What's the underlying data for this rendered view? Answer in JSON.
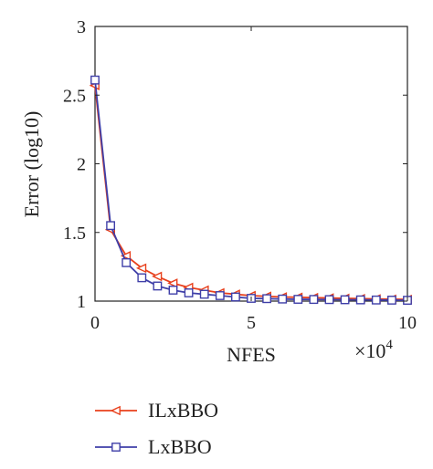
{
  "chart_data": {
    "type": "line",
    "title": "",
    "xlabel": "NFES",
    "ylabel": "Error (log10)",
    "x_multiplier_label": "×10",
    "x_multiplier_exponent": "4",
    "xlim": [
      0,
      10
    ],
    "ylim": [
      1,
      3
    ],
    "x_ticks": [
      0,
      5,
      10
    ],
    "x_tick_labels": [
      "0",
      "5",
      "10"
    ],
    "y_ticks": [
      1,
      1.5,
      2,
      2.5,
      3
    ],
    "y_tick_labels": [
      "1",
      "1.5",
      "2",
      "2.5",
      "3"
    ],
    "grid": false,
    "legend_position": "below",
    "x": [
      0,
      0.5,
      1,
      1.5,
      2,
      2.5,
      3,
      3.5,
      4,
      4.5,
      5,
      5.5,
      6,
      6.5,
      7,
      7.5,
      8,
      8.5,
      9,
      9.5,
      10
    ],
    "series": [
      {
        "name": "ILxBBO",
        "color": "#e8401c",
        "marker": "triangle-left",
        "values": [
          2.57,
          1.52,
          1.33,
          1.24,
          1.18,
          1.13,
          1.1,
          1.08,
          1.06,
          1.05,
          1.04,
          1.035,
          1.03,
          1.028,
          1.025,
          1.023,
          1.02,
          1.018,
          1.016,
          1.014,
          1.012
        ]
      },
      {
        "name": "LxBBO",
        "color": "#3f3fa8",
        "marker": "square",
        "values": [
          2.61,
          1.55,
          1.28,
          1.17,
          1.11,
          1.08,
          1.06,
          1.05,
          1.04,
          1.03,
          1.02,
          1.018,
          1.015,
          1.013,
          1.012,
          1.011,
          1.01,
          1.009,
          1.008,
          1.007,
          1.006
        ]
      }
    ]
  }
}
